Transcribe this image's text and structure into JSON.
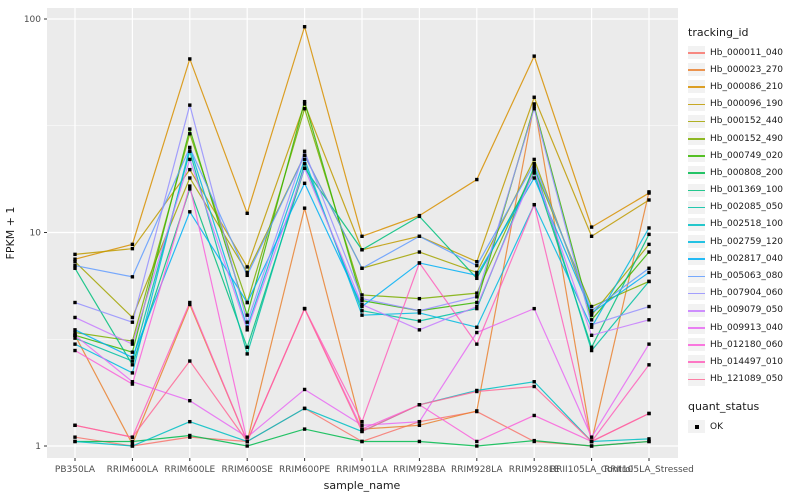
{
  "axes": {
    "x_title": "sample_name",
    "y_title": "FPKM + 1"
  },
  "legend": {
    "title": "tracking_id"
  },
  "legend2": {
    "title": "quant_status",
    "items": [
      {
        "label": "OK",
        "marker": "filled-square",
        "color": "#000000"
      }
    ]
  },
  "chart_data": {
    "type": "line",
    "title": "",
    "xlabel": "sample_name",
    "ylabel": "FPKM + 1",
    "y_scale": "log10",
    "ylim": [
      0.88,
      112
    ],
    "y_ticks": [
      {
        "label": "1",
        "value": 1
      },
      {
        "label": "10",
        "value": 10
      },
      {
        "label": "100",
        "value": 100
      }
    ],
    "y_minor_ticks": [
      3.162,
      31.62
    ],
    "grid": "white-on-gray",
    "panel_bg": "#EBEBEB",
    "grid_color": "#FFFFFF",
    "point_marker": {
      "shape": "square",
      "color": "#000000",
      "size": 3.4
    },
    "legend_position": "right",
    "categories": [
      "PB350LA",
      "RRIM600LA",
      "RRIM600LE",
      "RRIM600SE",
      "RRIM600PE",
      "RRIM901LA",
      "RRIM928BA",
      "RRIM928LA",
      "RRIM928LE",
      "RRII105LA_Control",
      "RRII105LA_Stressed"
    ],
    "series": [
      {
        "name": "Hb_000011_040",
        "color": "#F8766D",
        "values": [
          1.1,
          1.0,
          1.1,
          1.05,
          1.5,
          1.05,
          1.3,
          1.45,
          1.05,
          1.0,
          1.05
        ]
      },
      {
        "name": "Hb_000023_270",
        "color": "#EA8331",
        "values": [
          3.3,
          1.02,
          4.6,
          1.05,
          13.0,
          1.2,
          1.25,
          1.46,
          40.0,
          1.05,
          15.5
        ]
      },
      {
        "name": "Hb_000086_210",
        "color": "#D89000",
        "values": [
          7.5,
          8.8,
          65.0,
          12.3,
          92.0,
          9.6,
          12.0,
          17.7,
          67.0,
          10.6,
          15.3
        ]
      },
      {
        "name": "Hb_000096_190",
        "color": "#C09B00",
        "values": [
          7.9,
          8.4,
          19.7,
          6.9,
          40.0,
          8.3,
          9.6,
          7.3,
          43.0,
          9.6,
          14.2
        ]
      },
      {
        "name": "Hb_000152_440",
        "color": "#A3A500",
        "values": [
          7.3,
          4.0,
          18.0,
          6.5,
          23.0,
          6.8,
          8.1,
          6.5,
          22.0,
          4.1,
          8.8
        ]
      },
      {
        "name": "Hb_000152_490",
        "color": "#7CAE00",
        "values": [
          3.4,
          3.1,
          29.0,
          4.7,
          38.0,
          5.1,
          4.9,
          5.2,
          20.0,
          4.5,
          5.9
        ]
      },
      {
        "name": "Hb_000749_020",
        "color": "#39B600",
        "values": [
          3.3,
          2.75,
          30.5,
          4.1,
          41.0,
          4.8,
          4.3,
          4.7,
          39.0,
          3.9,
          8.1
        ]
      },
      {
        "name": "Hb_000808_200",
        "color": "#00BB4E",
        "values": [
          1.05,
          1.05,
          1.12,
          1.0,
          1.2,
          1.05,
          1.05,
          1.0,
          1.06,
          1.0,
          1.05
        ]
      },
      {
        "name": "Hb_001369_100",
        "color": "#00BF7D",
        "values": [
          6.8,
          2.4,
          16.0,
          2.9,
          20.0,
          8.3,
          11.9,
          6.1,
          19.0,
          2.9,
          9.8
        ]
      },
      {
        "name": "Hb_002085_050",
        "color": "#00C1A3",
        "values": [
          3.2,
          2.5,
          24.0,
          2.7,
          21.0,
          4.3,
          3.85,
          4.4,
          20.5,
          2.8,
          5.9
        ]
      },
      {
        "name": "Hb_002518_100",
        "color": "#00BFC4",
        "values": [
          1.05,
          1.0,
          1.3,
          1.05,
          1.5,
          1.17,
          1.56,
          1.82,
          2.0,
          1.05,
          1.08
        ]
      },
      {
        "name": "Hb_002759_120",
        "color": "#00BAE0",
        "values": [
          3.0,
          2.2,
          25.0,
          3.6,
          22.0,
          4.1,
          4.2,
          3.6,
          13.5,
          3.6,
          10.5
        ]
      },
      {
        "name": "Hb_002817_040",
        "color": "#00B0F6",
        "values": [
          3.5,
          2.6,
          12.5,
          4.7,
          17.0,
          4.5,
          7.2,
          6.3,
          18.0,
          4.2,
          6.5
        ]
      },
      {
        "name": "Hb_005063_080",
        "color": "#619CFF",
        "values": [
          7.0,
          6.2,
          25.0,
          6.3,
          23.0,
          6.8,
          9.6,
          7.0,
          21.0,
          4.3,
          6.8
        ]
      },
      {
        "name": "Hb_007904_060",
        "color": "#9590FF",
        "values": [
          4.7,
          3.8,
          39.5,
          3.8,
          24.0,
          4.9,
          4.3,
          5.0,
          38.0,
          3.7,
          4.5
        ]
      },
      {
        "name": "Hb_009079_050",
        "color": "#C77CFF",
        "values": [
          4.0,
          3.0,
          22.0,
          3.5,
          20.0,
          4.6,
          3.5,
          4.5,
          19.5,
          3.3,
          3.9
        ]
      },
      {
        "name": "Hb_009913_040",
        "color": "#E76BF3",
        "values": [
          3.3,
          2.0,
          1.63,
          1.1,
          1.84,
          1.25,
          1.3,
          3.4,
          4.4,
          1.1,
          3.0
        ]
      },
      {
        "name": "Hb_012180_060",
        "color": "#FA62DB",
        "values": [
          2.8,
          1.95,
          16.5,
          1.05,
          4.4,
          1.2,
          1.56,
          1.05,
          1.39,
          1.05,
          1.42
        ]
      },
      {
        "name": "Hb_014497_010",
        "color": "#FF62BC",
        "values": [
          1.25,
          1.1,
          4.7,
          1.05,
          4.4,
          1.3,
          7.2,
          3.0,
          13.5,
          1.05,
          2.4
        ]
      },
      {
        "name": "Hb_121089_050",
        "color": "#FF6A98",
        "values": [
          1.25,
          1.1,
          2.5,
          1.05,
          4.4,
          1.17,
          1.56,
          1.8,
          1.9,
          1.05,
          1.42
        ]
      }
    ]
  }
}
